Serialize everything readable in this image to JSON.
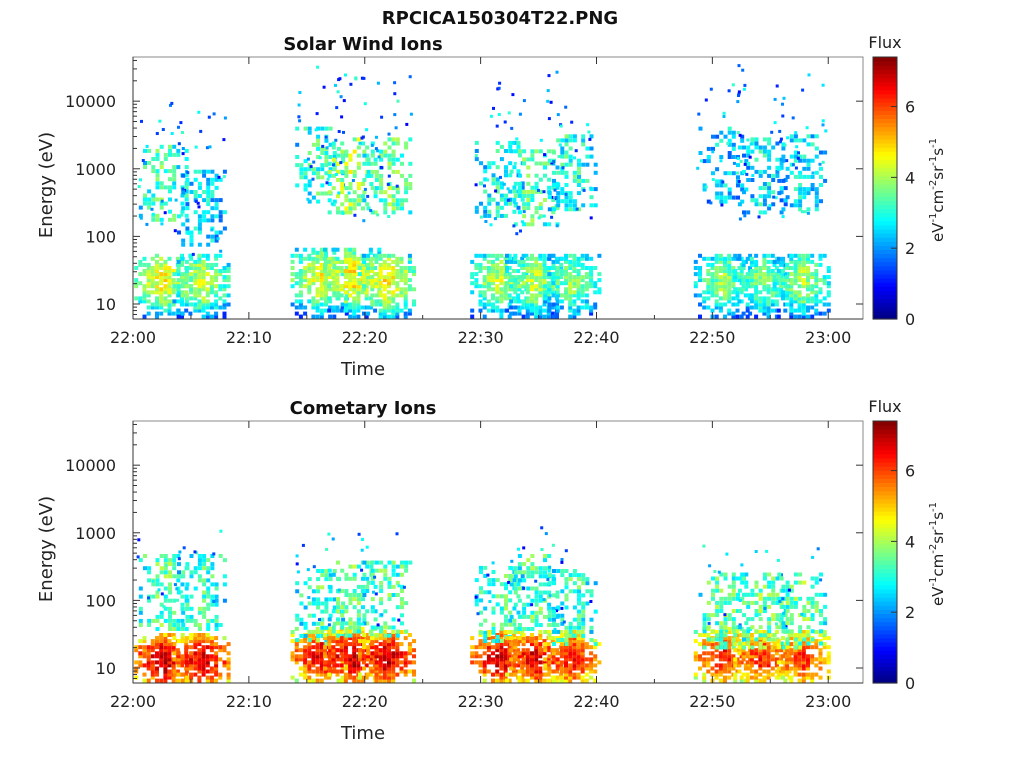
{
  "figure_title": "RPCICA150304T22.PNG",
  "chart_data": [
    {
      "type": "heatmap",
      "title": "Solar Wind Ions",
      "xlabel": "Time",
      "ylabel": "Energy (eV)",
      "x_ticks": [
        "22:00",
        "22:10",
        "22:20",
        "22:30",
        "22:40",
        "22:50",
        "23:00"
      ],
      "x_range": [
        "22:00",
        "23:03"
      ],
      "y_scale": "log",
      "y_ticks": [
        "10",
        "100",
        "1000",
        "10000"
      ],
      "y_range": [
        6,
        45000
      ],
      "colorbar": {
        "label": "Flux",
        "unit": "eV-1cm-2sr-1s-1",
        "unit_parts": [
          "eV",
          "-1",
          "cm",
          "-2",
          "sr",
          "-1",
          "s",
          "-1"
        ],
        "ticks": [
          "0",
          "2",
          "4",
          "6"
        ],
        "range": [
          0,
          7.4
        ],
        "colormap": "jet"
      },
      "clusters": [
        {
          "t": 2.5,
          "lowE": 22,
          "low_level": 4.7,
          "midE": 700,
          "mid_level": 3.4
        },
        {
          "t": 5.8,
          "lowE": 22,
          "low_level": 4.3,
          "midE": 300,
          "mid_level": 2.7
        },
        {
          "t": 16.0,
          "lowE": 25,
          "low_level": 4.6,
          "midE": 1300,
          "mid_level": 3.2
        },
        {
          "t": 18.8,
          "lowE": 25,
          "low_level": 4.8,
          "midE": 900,
          "mid_level": 4.1
        },
        {
          "t": 21.8,
          "lowE": 22,
          "low_level": 4.8,
          "midE": 900,
          "mid_level": 3.7
        },
        {
          "t": 31.5,
          "lowE": 22,
          "low_level": 4.3,
          "midE": 800,
          "mid_level": 3.0
        },
        {
          "t": 34.5,
          "lowE": 22,
          "low_level": 4.2,
          "midE": 600,
          "mid_level": 3.5
        },
        {
          "t": 37.8,
          "lowE": 22,
          "low_level": 3.9,
          "midE": 1000,
          "mid_level": 3.2
        },
        {
          "t": 50.8,
          "lowE": 22,
          "low_level": 4.0,
          "midE": 1300,
          "mid_level": 2.5
        },
        {
          "t": 54.2,
          "lowE": 22,
          "low_level": 3.9,
          "midE": 900,
          "mid_level": 2.8
        },
        {
          "t": 57.6,
          "lowE": 22,
          "low_level": 4.1,
          "midE": 1000,
          "mid_level": 2.8
        }
      ]
    },
    {
      "type": "heatmap",
      "title": "Cometary Ions",
      "xlabel": "Time",
      "ylabel": "Energy (eV)",
      "x_ticks": [
        "22:00",
        "22:10",
        "22:20",
        "22:30",
        "22:40",
        "22:50",
        "23:00"
      ],
      "x_range": [
        "22:00",
        "23:03"
      ],
      "y_scale": "log",
      "y_ticks": [
        "10",
        "100",
        "1000",
        "10000"
      ],
      "y_range": [
        6,
        45000
      ],
      "colorbar": {
        "label": "Flux",
        "unit": "eV-1cm-2sr-1s-1",
        "unit_parts": [
          "eV",
          "-1",
          "cm",
          "-2",
          "sr",
          "-1",
          "s",
          "-1"
        ],
        "ticks": [
          "0",
          "2",
          "4",
          "6"
        ],
        "range": [
          0,
          7.4
        ],
        "colormap": "jet"
      },
      "clusters": [
        {
          "t": 2.5,
          "lowE": 13,
          "low_level": 6.9,
          "midE": 150,
          "mid_level": 3.5
        },
        {
          "t": 5.8,
          "lowE": 13,
          "low_level": 6.8,
          "midE": 150,
          "mid_level": 3.3
        },
        {
          "t": 16.0,
          "lowE": 15,
          "low_level": 6.6,
          "midE": 90,
          "mid_level": 3.4
        },
        {
          "t": 18.8,
          "lowE": 15,
          "low_level": 7.0,
          "midE": 120,
          "mid_level": 3.6
        },
        {
          "t": 21.8,
          "lowE": 14,
          "low_level": 6.8,
          "midE": 120,
          "mid_level": 3.5
        },
        {
          "t": 31.5,
          "lowE": 14,
          "low_level": 6.8,
          "midE": 100,
          "mid_level": 3.4
        },
        {
          "t": 34.5,
          "lowE": 14,
          "low_level": 6.7,
          "midE": 150,
          "mid_level": 3.5
        },
        {
          "t": 37.8,
          "lowE": 14,
          "low_level": 6.5,
          "midE": 90,
          "mid_level": 3.3
        },
        {
          "t": 50.8,
          "lowE": 15,
          "low_level": 6.4,
          "midE": 80,
          "mid_level": 3.6
        },
        {
          "t": 54.2,
          "lowE": 14,
          "low_level": 6.3,
          "midE": 80,
          "mid_level": 3.7
        },
        {
          "t": 57.6,
          "lowE": 14,
          "low_level": 6.2,
          "midE": 80,
          "mid_level": 3.7
        }
      ]
    }
  ]
}
